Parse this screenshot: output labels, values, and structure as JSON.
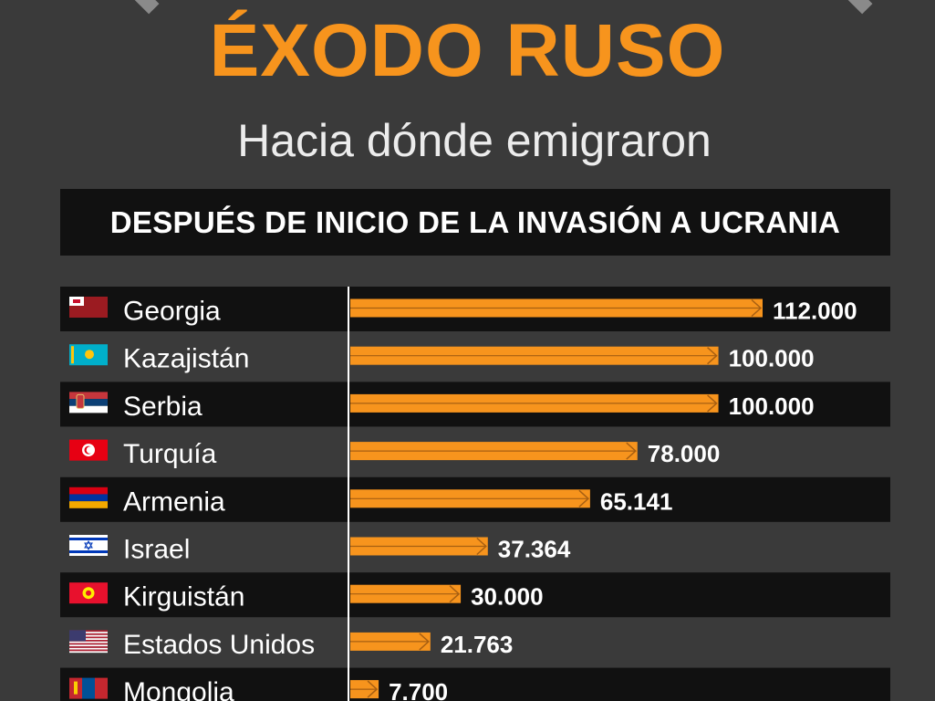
{
  "header": {
    "title": "ÉXODO RUSO",
    "subtitle": "Hacia dónde emigraron",
    "banner": "DESPUÉS DE INICIO DE LA INVASIÓN A UCRANIA"
  },
  "colors": {
    "background": "#3a3a3a",
    "row_dark": "#111111",
    "bar": "#f7941d",
    "text": "#ffffff"
  },
  "chart_data": {
    "type": "bar",
    "orientation": "horizontal",
    "title": "ÉXODO RUSO",
    "subtitle": "Hacia dónde emigraron",
    "categories": [
      "Georgia",
      "Kazajistán",
      "Serbia",
      "Turquía",
      "Armenia",
      "Israel",
      "Kirguistán",
      "Estados Unidos",
      "Mongolia"
    ],
    "values": [
      112000,
      100000,
      100000,
      78000,
      65141,
      37364,
      30000,
      21763,
      7700
    ],
    "value_labels": [
      "112.000",
      "100.000",
      "100.000",
      "78.000",
      "65.141",
      "37.364",
      "30.000",
      "21.763",
      "7.700"
    ],
    "flags": [
      "georgia-flag-icon",
      "kazakhstan-flag-icon",
      "serbia-flag-icon",
      "tunisia-flag-icon",
      "armenia-flag-icon",
      "israel-flag-icon",
      "kyrgyzstan-flag-icon",
      "usa-flag-icon",
      "mongolia-flag-icon"
    ],
    "xlim": [
      0,
      112000
    ],
    "grid": false
  }
}
